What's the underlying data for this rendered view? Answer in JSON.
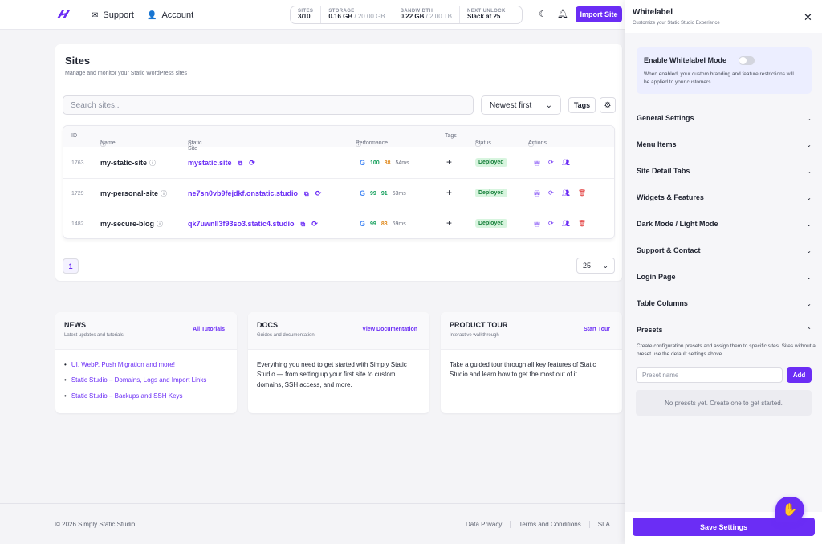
{
  "colors": {
    "accent": "#6b2df5",
    "deployed_bg": "#d8f5df",
    "deployed_fg": "#16803a",
    "danger": "#e03131"
  },
  "topbar": {
    "support_label": "Support",
    "account_label": "Account",
    "stats": [
      {
        "key": "SITES",
        "value": "3/10",
        "limit": ""
      },
      {
        "key": "STORAGE",
        "value": "0.16 GB",
        "limit": "/ 20.00 GB"
      },
      {
        "key": "BANDWIDTH",
        "value": "0.22 GB",
        "limit": "/ 2.00 TB"
      },
      {
        "key": "NEXT UNLOCK",
        "value": "Slack at 25",
        "limit": ""
      }
    ],
    "import_label": "Import Site"
  },
  "sites": {
    "title": "Sites",
    "subtitle": "Manage and monitor your Static WordPress sites",
    "search_placeholder": "Search sites..",
    "sort_value": "Newest first",
    "tags_label": "Tags",
    "columns": {
      "id": "ID",
      "name": "Name",
      "static_site": "Static Site",
      "performance": "Performance",
      "tags": "Tags",
      "status": "Status",
      "actions": "Actions"
    },
    "rows": [
      {
        "id": "1763",
        "name": "my-static-site",
        "site": "mystatic.site",
        "p1": "100",
        "p2": "88",
        "ms": "54ms",
        "status": "Deployed"
      },
      {
        "id": "1729",
        "name": "my-personal-site",
        "site": "ne7sn0vb9fejdkf.onstatic.studio",
        "p1": "99",
        "p2": "91",
        "ms": "63ms",
        "status": "Deployed"
      },
      {
        "id": "1482",
        "name": "my-secure-blog",
        "site": "qk7uwnll3f93so3.static4.studio",
        "p1": "99",
        "p2": "83",
        "ms": "69ms",
        "status": "Deployed"
      }
    ],
    "page": "1",
    "per_page": "25"
  },
  "news": {
    "title": "NEWS",
    "subtitle": "Latest updates and tutorials",
    "link": "All Tutorials",
    "items": [
      "UI, WebP, Push Migration and more!",
      "Static Studio – Domains, Logs and Import Links",
      "Static Studio – Backups and SSH Keys"
    ]
  },
  "docs": {
    "title": "DOCS",
    "subtitle": "Guides and documentation",
    "link": "View Documentation",
    "body": "Everything you need to get started with Simply Static Studio — from setting up your first site to custom domains, SSH access, and more."
  },
  "tour": {
    "title": "PRODUCT TOUR",
    "subtitle": "Interactive walkthrough",
    "link": "Start Tour",
    "body": "Take a guided tour through all key features of Static Studio and learn how to get the most out of it."
  },
  "footer": {
    "copyright": "© 2026 Simply Static Studio",
    "links": [
      "Data Privacy",
      "Terms and Conditions",
      "SLA"
    ]
  },
  "panel": {
    "title": "Whitelabel",
    "subtitle": "Customize your Static Studio Experience",
    "wl_title": "Enable Whitelabel Mode",
    "wl_desc": "When enabled, your custom branding and feature restrictions will be applied to your customers.",
    "sections": [
      "General Settings",
      "Menu Items",
      "Site Detail Tabs",
      "Widgets & Features",
      "Dark Mode / Light Mode",
      "Support & Contact",
      "Login Page",
      "Table Columns",
      "Presets"
    ],
    "preset_desc": "Create configuration presets and assign them to specific sites. Sites without a preset use the default settings above.",
    "preset_placeholder": "Preset name",
    "add_label": "Add",
    "empty_text": "No presets yet. Create one to get started.",
    "save_label": "Save Settings"
  }
}
